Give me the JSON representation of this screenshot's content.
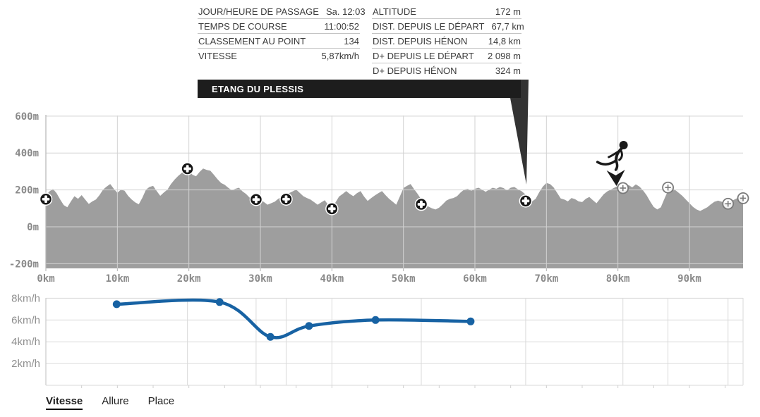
{
  "tooltip": {
    "left_rows": [
      {
        "label": "JOUR/HEURE DE PASSAGE",
        "value": "Sa. 12:03"
      },
      {
        "label": "TEMPS DE COURSE",
        "value": "11:00:52"
      },
      {
        "label": "CLASSEMENT AU POINT",
        "value": "134"
      },
      {
        "label": "VITESSE",
        "value": "5,87km/h"
      }
    ],
    "right_rows": [
      {
        "label": "ALTITUDE",
        "value": "172 m"
      },
      {
        "label": "DIST. DEPUIS LE DÉPART",
        "value": "67,7 km"
      },
      {
        "label": "DIST. DEPUIS HÉNON",
        "value": "14,8 km"
      },
      {
        "label": "D+ DEPUIS LE DÉPART",
        "value": "2 098 m"
      },
      {
        "label": "D+ DEPUIS HÉNON",
        "value": "324 m"
      }
    ],
    "checkpoint_banner": "ETANG DU PLESSIS"
  },
  "tabs": [
    {
      "label": "Vitesse",
      "active": true
    },
    {
      "label": "Allure",
      "active": false
    },
    {
      "label": "Place",
      "active": false
    }
  ],
  "colors": {
    "terrain": "#9e9e9e",
    "grid": "#d2d2d2",
    "axis_text": "#8a8a8a",
    "speed_line": "#1762a3",
    "banner_bg": "#1d1d1d",
    "marker_passed": "#161616",
    "marker_upcoming": "#7a7a7a",
    "wedge": "#333333"
  },
  "chart_data": [
    {
      "type": "area",
      "title": "elevation-profile",
      "xlim": [
        0,
        97.5
      ],
      "ylim": [
        -225,
        625
      ],
      "y_ticks": [
        {
          "alt": 600,
          "label": "600m"
        },
        {
          "alt": 400,
          "label": "400m"
        },
        {
          "alt": 200,
          "label": "200m"
        },
        {
          "alt": 0,
          "label": "0m"
        },
        {
          "alt": -200,
          "label": "-200m"
        }
      ],
      "x_ticks": [
        {
          "km": 0,
          "label": "0km"
        },
        {
          "km": 10,
          "label": "10km"
        },
        {
          "km": 20,
          "label": "20km"
        },
        {
          "km": 30,
          "label": "30km"
        },
        {
          "km": 40,
          "label": "40km"
        },
        {
          "km": 50,
          "label": "50km"
        },
        {
          "km": 60,
          "label": "60km"
        },
        {
          "km": 70,
          "label": "70km"
        },
        {
          "km": 80,
          "label": "80km"
        },
        {
          "km": 90,
          "label": "90km"
        }
      ],
      "km_step": 0.5,
      "altitudes": [
        170,
        192,
        205,
        182,
        148,
        118,
        106,
        138,
        166,
        152,
        172,
        148,
        124,
        138,
        148,
        172,
        202,
        218,
        232,
        206,
        184,
        202,
        196,
        168,
        148,
        132,
        122,
        158,
        202,
        216,
        222,
        194,
        168,
        186,
        202,
        232,
        256,
        276,
        292,
        302,
        308,
        282,
        274,
        298,
        316,
        308,
        304,
        282,
        258,
        238,
        228,
        212,
        198,
        206,
        212,
        192,
        178,
        158,
        144,
        150,
        148,
        134,
        120,
        128,
        136,
        152,
        164,
        172,
        182,
        192,
        202,
        184,
        166,
        156,
        148,
        134,
        120,
        132,
        144,
        118,
        98,
        132,
        164,
        178,
        194,
        178,
        166,
        182,
        194,
        164,
        140,
        156,
        170,
        182,
        194,
        172,
        152,
        136,
        120,
        164,
        210,
        222,
        232,
        204,
        178,
        148,
        124,
        110,
        100,
        94,
        104,
        122,
        142,
        152,
        156,
        166,
        186,
        202,
        206,
        196,
        206,
        212,
        202,
        190,
        202,
        212,
        206,
        216,
        210,
        198,
        212,
        216,
        204,
        194,
        178,
        158,
        138,
        152,
        188,
        218,
        238,
        232,
        214,
        184,
        154,
        148,
        138,
        156,
        150,
        138,
        134,
        152,
        162,
        144,
        128,
        152,
        176,
        192,
        202,
        212,
        222,
        212,
        216,
        226,
        214,
        230,
        218,
        198,
        172,
        138,
        108,
        94,
        106,
        152,
        196,
        212,
        200,
        184,
        168,
        148,
        128,
        108,
        94,
        86,
        96,
        106,
        122,
        136,
        142,
        136,
        130,
        126,
        142,
        152,
        162,
        168
      ],
      "checkpoints_passed": [
        {
          "km": 0,
          "alt": 150
        },
        {
          "km": 19.8,
          "alt": 315
        },
        {
          "km": 29.4,
          "alt": 148
        },
        {
          "km": 33.6,
          "alt": 150
        },
        {
          "km": 40.0,
          "alt": 98
        },
        {
          "km": 52.5,
          "alt": 122
        },
        {
          "km": 67.1,
          "alt": 140
        }
      ],
      "checkpoints_upcoming": [
        {
          "km": 80.7,
          "alt": 210
        },
        {
          "km": 87.0,
          "alt": 213
        },
        {
          "km": 95.4,
          "alt": 125
        },
        {
          "km": 97.5,
          "alt": 155
        }
      ],
      "runner_km": 79.8,
      "pointer_target_km": 67.1
    },
    {
      "type": "line",
      "title": "vitesse",
      "x": [
        9.9,
        24.3,
        31.4,
        36.8,
        46.1,
        59.4
      ],
      "values": [
        7.45,
        7.65,
        4.45,
        5.45,
        6.0,
        5.87
      ],
      "ylim": [
        0,
        8.7
      ],
      "y_ticks": [
        {
          "v": 8,
          "label": "8km/h"
        },
        {
          "v": 6,
          "label": "6km/h"
        },
        {
          "v": 4,
          "label": "4km/h"
        },
        {
          "v": 2,
          "label": "2km/h"
        }
      ],
      "grid_x_km": [
        19.8,
        29.4,
        33.6,
        40,
        52.5,
        67.1,
        80.7,
        87,
        95.4,
        97.5
      ]
    }
  ]
}
